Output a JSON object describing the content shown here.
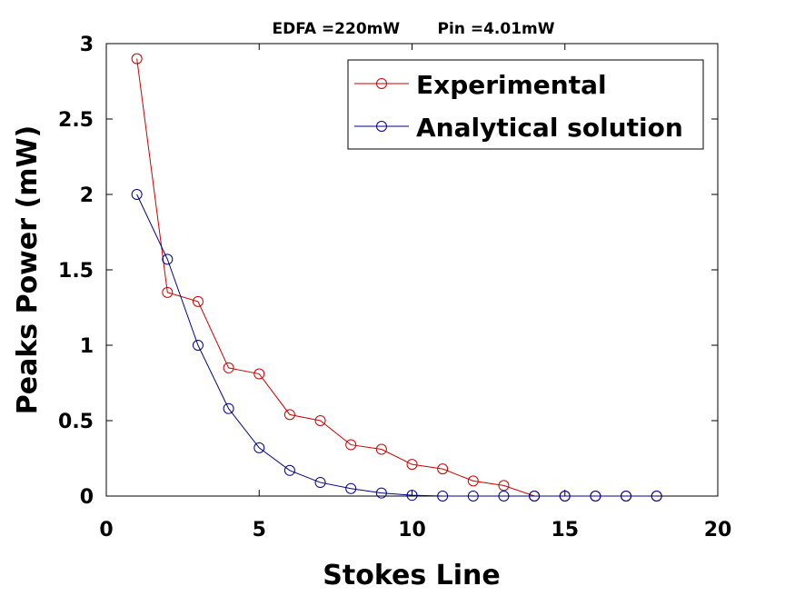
{
  "chart_data": {
    "type": "line",
    "title": "EDFA =220mW       Pin =4.01mW",
    "xlabel": "Stokes Line",
    "ylabel": "Peaks Power (mW)",
    "xlim": [
      0,
      20
    ],
    "ylim": [
      0,
      3
    ],
    "xticks": [
      0,
      5,
      10,
      15,
      20
    ],
    "yticks": [
      0,
      0.5,
      1,
      1.5,
      2,
      2.5,
      3
    ],
    "grid": false,
    "legend_position": "top-right",
    "series": [
      {
        "name": "Experimental",
        "color": "#cc0000",
        "marker": "circle",
        "x": [
          1,
          2,
          3,
          4,
          5,
          6,
          7,
          8,
          9,
          10,
          11,
          12,
          13,
          14,
          15,
          16,
          17,
          18
        ],
        "y": [
          2.9,
          1.35,
          1.29,
          0.85,
          0.81,
          0.54,
          0.5,
          0.34,
          0.31,
          0.21,
          0.18,
          0.1,
          0.07,
          0,
          0,
          0,
          0,
          0
        ]
      },
      {
        "name": "Analytical solution",
        "color": "#00008b",
        "marker": "circle",
        "x": [
          1,
          2,
          3,
          4,
          5,
          6,
          7,
          8,
          9,
          10,
          11,
          12,
          13,
          14,
          15,
          16,
          17,
          18
        ],
        "y": [
          2.0,
          1.57,
          1.0,
          0.58,
          0.32,
          0.17,
          0.09,
          0.05,
          0.02,
          0.005,
          0,
          0,
          0,
          0,
          0,
          0,
          0,
          0
        ]
      }
    ]
  }
}
